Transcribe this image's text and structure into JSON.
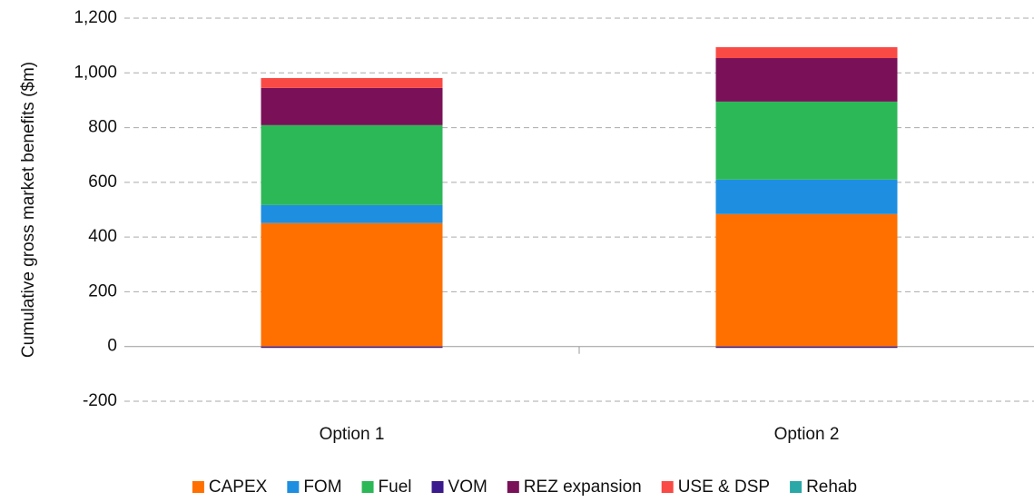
{
  "chart_data": {
    "type": "stacked-bar",
    "y_label": "Cumulative gross market benefits ($m)",
    "categories": [
      "Option 1",
      "Option 2"
    ],
    "series": [
      {
        "name": "CAPEX",
        "color": "#ff7000",
        "values": [
          451,
          484
        ]
      },
      {
        "name": "FOM",
        "color": "#1e8fe0",
        "values": [
          66,
          126
        ]
      },
      {
        "name": "Fuel",
        "color": "#2db858",
        "values": [
          292,
          285
        ]
      },
      {
        "name": "VOM",
        "color": "#3a1a8c",
        "values": [
          -5,
          -5
        ]
      },
      {
        "name": "REZ expansion",
        "color": "#7a1158",
        "values": [
          136,
          159
        ]
      },
      {
        "name": "USE & DSP",
        "color": "#f94a45",
        "values": [
          36,
          40
        ]
      },
      {
        "name": "Rehab",
        "color": "#2aa8a8",
        "values": [
          0,
          0
        ]
      }
    ],
    "ylim": [
      -200,
      1200
    ],
    "yticks": [
      -200,
      0,
      200,
      400,
      600,
      800,
      {
        "value": 1000,
        "label": "1,000"
      },
      {
        "value": 1200,
        "label": "1,200"
      }
    ],
    "grid": true
  }
}
